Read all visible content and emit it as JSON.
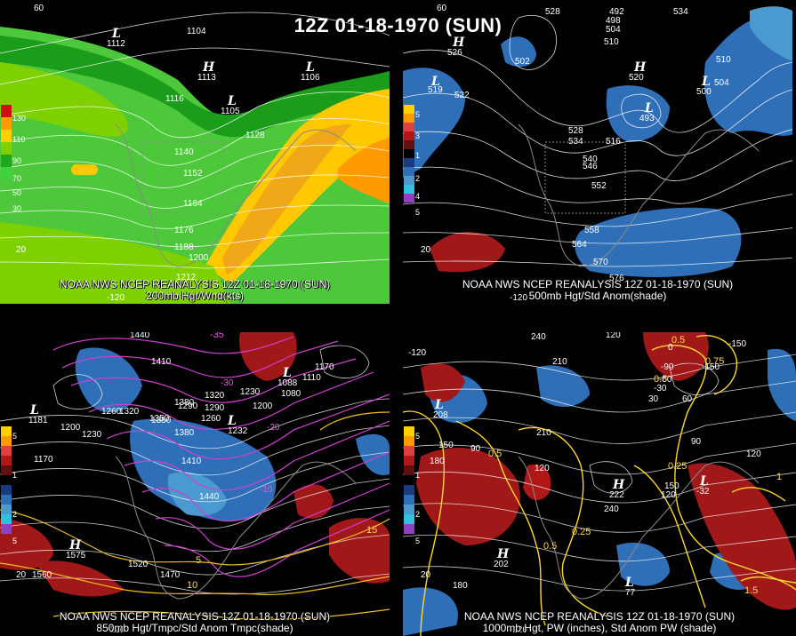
{
  "title": "12Z 01-18-1970 (SUN)",
  "panels": {
    "p1": {
      "caption1": "NOAA NWS NCEP REANALYSIS 12Z 01-18-1970 (SUN)",
      "caption2": "200mb Hgt/Wnd(kts)",
      "legend": [
        "130",
        "110",
        "90",
        "70",
        "50",
        "30"
      ],
      "contour_labels": [
        "1104",
        "1116",
        "1128",
        "1140",
        "1152",
        "1164",
        "1176",
        "1188",
        "1200",
        "1212"
      ],
      "pressure_centers": [
        {
          "type": "L",
          "value": "1112"
        },
        {
          "type": "H",
          "value": "1113"
        },
        {
          "type": "L",
          "value": "1106"
        },
        {
          "type": "L",
          "value": "1105"
        }
      ],
      "lat_labels": [
        "60",
        "40",
        "20"
      ],
      "lon_labels": [
        "-120",
        "-60"
      ]
    },
    "p2": {
      "caption1": "NOAA NWS NCEP REANALYSIS 12Z 01-18-1970 (SUN)",
      "caption2": "500mb Hgt/Std Anom(shade)",
      "legend": [
        "5",
        "4",
        "3",
        "2",
        "1",
        "0",
        "1",
        "2",
        "3",
        "4",
        "5"
      ],
      "contour_labels": [
        "528",
        "492",
        "498",
        "504",
        "510",
        "516",
        "522",
        "528",
        "534",
        "540",
        "546",
        "552",
        "558",
        "564",
        "570",
        "576",
        "534",
        "510",
        "504",
        "502"
      ],
      "pressure_centers": [
        {
          "type": "L",
          "value": "519"
        },
        {
          "type": "H",
          "value": "526"
        },
        {
          "type": "H",
          "value": "520"
        },
        {
          "type": "L",
          "value": "500"
        },
        {
          "type": "L",
          "value": "493"
        }
      ],
      "lat_labels": [
        "60",
        "20"
      ],
      "lon_labels": [
        "-120"
      ]
    },
    "p3": {
      "caption1": "NOAA NWS NCEP REANALYSIS 12Z 01-18-1970 (SUN)",
      "caption2": "850mb Hgt/Tmpc/Std Anom Tmpc(shade)",
      "legend": [
        "5",
        "4",
        "3",
        "2",
        "1",
        "0",
        "1",
        "2",
        "3",
        "4",
        "5"
      ],
      "contour_labels": [
        "1440",
        "1410",
        "1380",
        "1350",
        "1320",
        "1290",
        "1260",
        "1230",
        "1200",
        "1170",
        "1110",
        "1080",
        "1410",
        "1440",
        "1470",
        "1520",
        "1560",
        "1170",
        "1200",
        "1230",
        "1260",
        "1290",
        "1320",
        "1350",
        "1380"
      ],
      "temp_labels": [
        "-35",
        "-30",
        "-25",
        "-20",
        "-15",
        "-10",
        "-5",
        "0",
        "5",
        "10",
        "15",
        "20"
      ],
      "pressure_centers": [
        {
          "type": "L",
          "value": "1181"
        },
        {
          "type": "H",
          "value": "1575"
        },
        {
          "type": "L",
          "value": "1232"
        },
        {
          "type": "L",
          "value": "1088"
        }
      ],
      "lat_labels": [
        "20"
      ],
      "lon_labels": [
        "-120"
      ]
    },
    "p4": {
      "caption1": "NOAA NWS NCEP REANALYSIS 12Z 01-18-1970 (SUN)",
      "caption2": "1000mb Hgt, PW (inches), Std Anom PW (shade)",
      "legend": [
        "5",
        "4",
        "3",
        "2",
        "1",
        "0",
        "1",
        "2",
        "3",
        "4",
        "5"
      ],
      "contour_labels": [
        "240",
        "120",
        "-120",
        "210",
        "-150",
        "-150",
        "-90",
        "-60",
        "-30",
        "30",
        "60",
        "90",
        "120",
        "150",
        "180",
        "210",
        "240",
        "150",
        "90",
        "180",
        "120",
        "0",
        "120"
      ],
      "pw_labels": [
        "0.5",
        "0.5",
        "0.25",
        "0.25",
        "0.5",
        "0.5",
        "0.75",
        "1",
        "1.5"
      ],
      "pressure_centers": [
        {
          "type": "L",
          "value": "208"
        },
        {
          "type": "H",
          "value": "202"
        },
        {
          "type": "H",
          "value": "222"
        },
        {
          "type": "L",
          "value": "77"
        },
        {
          "type": "L",
          "value": "-32"
        }
      ],
      "lat_labels": [
        "20"
      ],
      "lon_labels": [
        "-120"
      ]
    }
  },
  "colors": {
    "jet_30": "#3fd23f",
    "jet_50": "#1fa81f",
    "jet_70": "#7ed000",
    "jet_90": "#ffd000",
    "jet_110": "#ff9a00",
    "jet_130": "#d01010",
    "anom_neg": "#3a7fd0",
    "anom_pos": "#a01818",
    "temp_contour": "#d040d0",
    "pw_contour": "#ffd82a"
  }
}
